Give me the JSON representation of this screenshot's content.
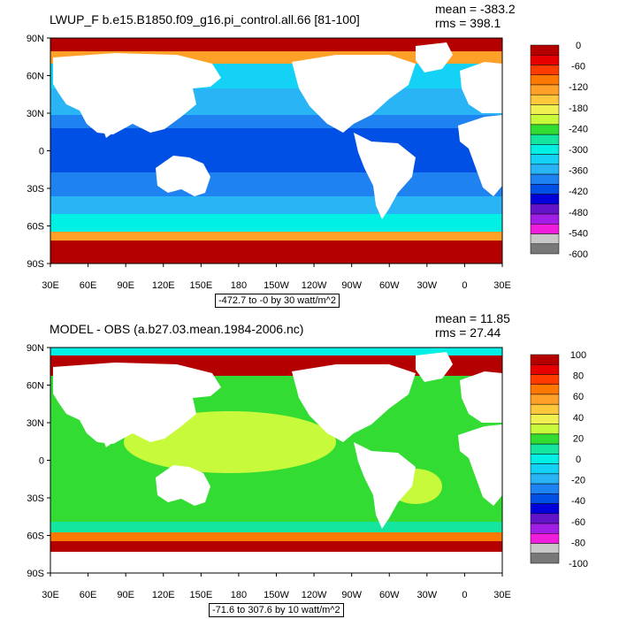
{
  "panels": [
    {
      "id": "top",
      "title": "LWUP_F b.e15.B1850.f09_g16.pi_control.all.66 [81-100]",
      "mean": "mean = -383.2",
      "rms": "rms = 398.1",
      "range_caption": "-472.7 to -0 by 30 watt/m^2",
      "colorbar_labels": [
        "0",
        "-60",
        "-120",
        "-180",
        "-240",
        "-300",
        "-360",
        "-420",
        "-480",
        "-540",
        "-600"
      ],
      "colorbar_colors": [
        "#B40000",
        "#E60000",
        "#FF3C00",
        "#FF7800",
        "#FFA028",
        "#FFC83C",
        "#F0F050",
        "#C8FA3C",
        "#32DC32",
        "#14E6A0",
        "#00F0E6",
        "#14D2F5",
        "#28B4F5",
        "#1E82F0",
        "#0050E6",
        "#0000DC",
        "#6414C8",
        "#A01EE6",
        "#F01EDC",
        "#C8C8C8",
        "#787878"
      ],
      "ocean_colors": {
        "tropics": "#0050E6",
        "subtropic_n": "#1E82F0",
        "subtropic_s": "#1E82F0",
        "midlat_n": "#28B4F5",
        "midlat_s": "#28B4F5",
        "highlat_n": "#14D2F5",
        "highlat_s": "#00F0E6",
        "polar": "#B40000",
        "polar_edge": "#FFA028"
      }
    },
    {
      "id": "bottom",
      "title": "MODEL - OBS (a.b27.03.mean.1984-2006.nc)",
      "mean": "mean = 11.85",
      "rms": "rms = 27.44",
      "range_caption": "-71.6 to 307.6 by 10 watt/m^2",
      "colorbar_labels": [
        "100",
        "80",
        "60",
        "40",
        "20",
        "0",
        "-20",
        "-40",
        "-60",
        "-80",
        "-100"
      ],
      "colorbar_colors": [
        "#B40000",
        "#E60000",
        "#FF3C00",
        "#FF7800",
        "#FFA028",
        "#FFC83C",
        "#F0F050",
        "#C8FA3C",
        "#32DC32",
        "#14E6A0",
        "#00F0E6",
        "#14D2F5",
        "#28B4F5",
        "#1E82F0",
        "#0050E6",
        "#0000DC",
        "#6414C8",
        "#A01EE6",
        "#F01EDC",
        "#C8C8C8",
        "#787878"
      ],
      "ocean_colors": {
        "main": "#32DC32",
        "light": "#C8FA3C",
        "teal": "#14E6A0",
        "arctic": "#00F0E6",
        "hot": "#B40000",
        "warm": "#FF7800"
      }
    }
  ],
  "axes": {
    "lat_labels": [
      "90N",
      "60N",
      "30N",
      "0",
      "30S",
      "60S",
      "90S"
    ],
    "lon_labels": [
      "30E",
      "60E",
      "90E",
      "120E",
      "150E",
      "180",
      "150W",
      "120W",
      "90W",
      "60W",
      "30W",
      "0",
      "30E"
    ]
  }
}
